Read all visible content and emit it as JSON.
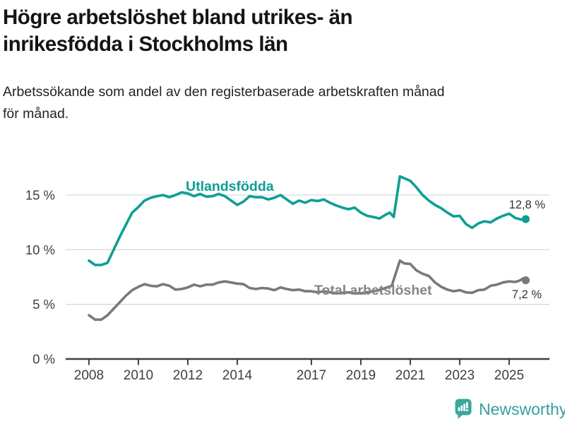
{
  "header": {
    "title_lines": [
      "Högre arbetslöshet bland utrikes- än",
      "inrikesfödda i Stockholms län"
    ],
    "subtitle_lines": [
      "Arbetssökande som andel av den registerbaserade arbetskraften månad",
      "för månad."
    ]
  },
  "chart_data": {
    "type": "line",
    "title": "Högre arbetslöshet bland utrikes- än inrikesfödda i Stockholms län",
    "xlabel": "",
    "ylabel": "Arbetssökande som andel av den registerbaserade arbetskraften",
    "grid": "horizontal",
    "legend_position": "inline-labels",
    "xlim": [
      2007.06,
      2026.63
    ],
    "ylim": [
      0,
      17.33
    ],
    "x_ticks": [
      {
        "v": 2008,
        "label": "2008"
      },
      {
        "v": 2010,
        "label": "2010"
      },
      {
        "v": 2012,
        "label": "2012"
      },
      {
        "v": 2014,
        "label": "2014"
      },
      {
        "v": 2017,
        "label": "2017"
      },
      {
        "v": 2019,
        "label": "2019"
      },
      {
        "v": 2021,
        "label": "2021"
      },
      {
        "v": 2023,
        "label": "2023"
      },
      {
        "v": 2025,
        "label": "2025"
      }
    ],
    "y_ticks": [
      {
        "v": 0,
        "label": "0 %"
      },
      {
        "v": 5,
        "label": "5 %"
      },
      {
        "v": 10,
        "label": "10 %"
      },
      {
        "v": 15,
        "label": "15 %"
      }
    ],
    "series": [
      {
        "name": "Utlandsfödda",
        "color": "#0BA092",
        "end_label": "12,8 %",
        "end_value": 12.8,
        "points": [
          [
            2008.0,
            9.0
          ],
          [
            2008.25,
            8.6
          ],
          [
            2008.5,
            8.6
          ],
          [
            2008.75,
            8.8
          ],
          [
            2009.0,
            10.0
          ],
          [
            2009.25,
            11.2
          ],
          [
            2009.5,
            12.3
          ],
          [
            2009.75,
            13.4
          ],
          [
            2010.0,
            13.9
          ],
          [
            2010.25,
            14.5
          ],
          [
            2010.5,
            14.75
          ],
          [
            2010.75,
            14.9
          ],
          [
            2011.0,
            15.0
          ],
          [
            2011.25,
            14.8
          ],
          [
            2011.5,
            15.0
          ],
          [
            2011.75,
            15.25
          ],
          [
            2012.0,
            15.15
          ],
          [
            2012.25,
            14.9
          ],
          [
            2012.5,
            15.1
          ],
          [
            2012.75,
            14.85
          ],
          [
            2013.0,
            14.9
          ],
          [
            2013.25,
            15.1
          ],
          [
            2013.5,
            14.9
          ],
          [
            2013.75,
            14.5
          ],
          [
            2014.0,
            14.1
          ],
          [
            2014.25,
            14.4
          ],
          [
            2014.5,
            14.9
          ],
          [
            2014.75,
            14.8
          ],
          [
            2015.0,
            14.8
          ],
          [
            2015.25,
            14.6
          ],
          [
            2015.5,
            14.75
          ],
          [
            2015.75,
            15.0
          ],
          [
            2016.0,
            14.6
          ],
          [
            2016.25,
            14.2
          ],
          [
            2016.5,
            14.5
          ],
          [
            2016.75,
            14.3
          ],
          [
            2017.0,
            14.55
          ],
          [
            2017.25,
            14.45
          ],
          [
            2017.5,
            14.6
          ],
          [
            2017.75,
            14.3
          ],
          [
            2018.0,
            14.05
          ],
          [
            2018.25,
            13.85
          ],
          [
            2018.5,
            13.7
          ],
          [
            2018.75,
            13.85
          ],
          [
            2019.0,
            13.4
          ],
          [
            2019.25,
            13.1
          ],
          [
            2019.5,
            13.0
          ],
          [
            2019.75,
            12.85
          ],
          [
            2020.0,
            13.2
          ],
          [
            2020.17,
            13.4
          ],
          [
            2020.33,
            13.0
          ],
          [
            2020.58,
            16.7
          ],
          [
            2020.75,
            16.55
          ],
          [
            2021.0,
            16.3
          ],
          [
            2021.25,
            15.7
          ],
          [
            2021.5,
            15.0
          ],
          [
            2021.75,
            14.5
          ],
          [
            2022.0,
            14.1
          ],
          [
            2022.25,
            13.8
          ],
          [
            2022.5,
            13.4
          ],
          [
            2022.75,
            13.05
          ],
          [
            2023.0,
            13.1
          ],
          [
            2023.25,
            12.35
          ],
          [
            2023.5,
            12.0
          ],
          [
            2023.75,
            12.4
          ],
          [
            2024.0,
            12.6
          ],
          [
            2024.25,
            12.5
          ],
          [
            2024.5,
            12.85
          ],
          [
            2024.75,
            13.1
          ],
          [
            2025.0,
            13.3
          ],
          [
            2025.25,
            12.9
          ],
          [
            2025.5,
            12.75
          ],
          [
            2025.67,
            12.8
          ]
        ]
      },
      {
        "name": "Total arbetslöshet",
        "color": "#78787D",
        "label_color": "#84848A",
        "end_label": "7,2 %",
        "end_value": 7.2,
        "points": [
          [
            2008.0,
            4.0
          ],
          [
            2008.25,
            3.6
          ],
          [
            2008.5,
            3.6
          ],
          [
            2008.75,
            4.0
          ],
          [
            2009.0,
            4.6
          ],
          [
            2009.25,
            5.2
          ],
          [
            2009.5,
            5.8
          ],
          [
            2009.75,
            6.3
          ],
          [
            2010.0,
            6.6
          ],
          [
            2010.25,
            6.85
          ],
          [
            2010.5,
            6.7
          ],
          [
            2010.75,
            6.65
          ],
          [
            2011.0,
            6.85
          ],
          [
            2011.25,
            6.7
          ],
          [
            2011.5,
            6.35
          ],
          [
            2011.75,
            6.4
          ],
          [
            2012.0,
            6.55
          ],
          [
            2012.25,
            6.8
          ],
          [
            2012.5,
            6.65
          ],
          [
            2012.75,
            6.8
          ],
          [
            2013.0,
            6.8
          ],
          [
            2013.25,
            7.0
          ],
          [
            2013.5,
            7.1
          ],
          [
            2013.75,
            7.0
          ],
          [
            2014.0,
            6.9
          ],
          [
            2014.25,
            6.85
          ],
          [
            2014.5,
            6.5
          ],
          [
            2014.75,
            6.4
          ],
          [
            2015.0,
            6.5
          ],
          [
            2015.25,
            6.45
          ],
          [
            2015.5,
            6.3
          ],
          [
            2015.75,
            6.55
          ],
          [
            2016.0,
            6.4
          ],
          [
            2016.25,
            6.3
          ],
          [
            2016.5,
            6.35
          ],
          [
            2016.75,
            6.2
          ],
          [
            2017.0,
            6.2
          ],
          [
            2017.25,
            6.1
          ],
          [
            2017.5,
            6.2
          ],
          [
            2017.75,
            6.1
          ],
          [
            2018.0,
            6.0
          ],
          [
            2018.25,
            6.05
          ],
          [
            2018.5,
            6.1
          ],
          [
            2018.75,
            6.0
          ],
          [
            2019.0,
            6.0
          ],
          [
            2019.25,
            6.1
          ],
          [
            2019.5,
            6.2
          ],
          [
            2019.75,
            6.3
          ],
          [
            2020.0,
            6.5
          ],
          [
            2020.25,
            6.7
          ],
          [
            2020.58,
            9.0
          ],
          [
            2020.75,
            8.75
          ],
          [
            2021.0,
            8.7
          ],
          [
            2021.25,
            8.1
          ],
          [
            2021.5,
            7.8
          ],
          [
            2021.75,
            7.6
          ],
          [
            2022.0,
            7.0
          ],
          [
            2022.25,
            6.6
          ],
          [
            2022.5,
            6.35
          ],
          [
            2022.75,
            6.2
          ],
          [
            2023.0,
            6.3
          ],
          [
            2023.25,
            6.1
          ],
          [
            2023.5,
            6.05
          ],
          [
            2023.75,
            6.3
          ],
          [
            2024.0,
            6.35
          ],
          [
            2024.25,
            6.7
          ],
          [
            2024.5,
            6.8
          ],
          [
            2024.75,
            7.0
          ],
          [
            2025.0,
            7.1
          ],
          [
            2025.25,
            7.05
          ],
          [
            2025.4,
            7.15
          ],
          [
            2025.55,
            7.35
          ],
          [
            2025.67,
            7.2
          ]
        ]
      }
    ]
  },
  "colors": {
    "accent_teal": "#0BA092",
    "series_gray": "#78787D",
    "grid": "#D9D9D9",
    "axis": "#3F3F3F",
    "brand_teal": "#37A099"
  },
  "footer": {
    "brand": "Newsworthy"
  }
}
